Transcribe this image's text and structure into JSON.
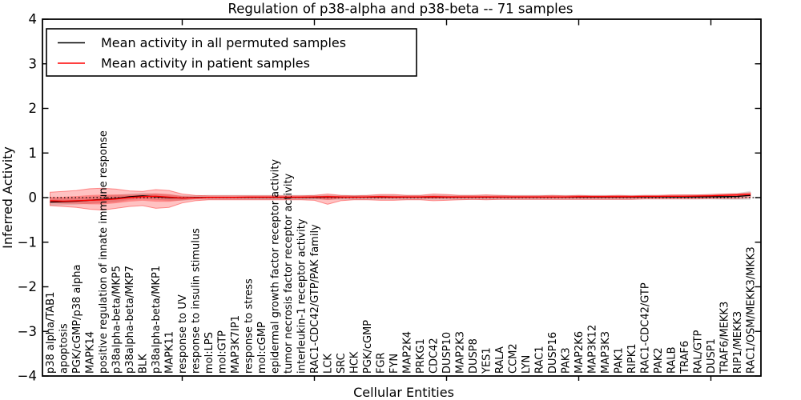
{
  "chart_data": {
    "type": "line",
    "title": "Regulation of p38-alpha and p38-beta -- 71 samples",
    "xlabel": "Cellular Entities",
    "ylabel": "Inferred Activity",
    "ylim": [
      -4,
      4
    ],
    "yticks": [
      -4,
      -3,
      -2,
      -1,
      0,
      1,
      2,
      3,
      4
    ],
    "x_major_tick_indices": [
      10,
      20,
      30,
      40,
      50
    ],
    "grid": false,
    "zero_line": {
      "y": 0,
      "style": "dotted",
      "color": "#000000"
    },
    "legend": {
      "position": "upper left",
      "items": [
        {
          "label": "Mean activity in all permuted samples",
          "color": "#000000"
        },
        {
          "label": "Mean activity in patient samples",
          "color": "#ff0000"
        }
      ]
    },
    "categories": [
      "p38 alpha/TAB1",
      "apoptosis",
      "PGK/cGMP/p38 alpha",
      "MAPK14",
      "positive regulation of innate immune response",
      "p38alpha-beta/MKP5",
      "p38alpha-beta/MKP7",
      "BLK",
      "p38alpha-beta/MKP1",
      "MAPK11",
      "response to UV",
      "response to insulin stimulus",
      "mol:LPS",
      "mol:GTP",
      "MAP3K7IP1",
      "response to stress",
      "mol:cGMP",
      "epidermal growth factor receptor activity",
      "tumor necrosis factor receptor activity",
      "interleukin-1 receptor activity",
      "RAC1-CDC42/GTP/PAK family",
      "LCK",
      "SRC",
      "HCK",
      "PGK/cGMP",
      "FGR",
      "FYN",
      "MAP2K4",
      "PRKG1",
      "CDC42",
      "DUSP10",
      "MAP2K3",
      "DUSP8",
      "YES1",
      "RALA",
      "CCM2",
      "LYN",
      "RAC1",
      "DUSP16",
      "PAK3",
      "MAP2K6",
      "MAP3K12",
      "MAP3K3",
      "PAK1",
      "RIPK1",
      "RAC1-CDC42/GTP",
      "PAK2",
      "RALB",
      "TRAF6",
      "RAL/GTP",
      "DUSP1",
      "TRAF6/MEKK3",
      "RIP1/MEKK3",
      "RAC1/OSM/MEKK3/MKK3"
    ],
    "series": [
      {
        "name": "Mean activity in all permuted samples",
        "color": "#000000",
        "values": [
          -0.1,
          -0.09,
          -0.08,
          -0.06,
          -0.04,
          -0.02,
          0.02,
          0.04,
          0.02,
          0.0,
          -0.01,
          0.0,
          0.005,
          0.005,
          0.005,
          0.005,
          0.005,
          0.005,
          0.005,
          0.005,
          0.005,
          0.01,
          0.01,
          0.01,
          0.01,
          0.01,
          0.01,
          0.01,
          0.01,
          0.01,
          0.01,
          0.01,
          0.01,
          0.01,
          0.01,
          0.01,
          0.01,
          0.01,
          0.01,
          0.01,
          0.01,
          0.01,
          0.01,
          0.01,
          0.01,
          0.015,
          0.015,
          0.015,
          0.015,
          0.015,
          0.02,
          0.02,
          0.025,
          0.05
        ],
        "band": {
          "color": "#808080",
          "opacity": 0.25,
          "upper": [
            -0.02,
            -0.01,
            0.0,
            0.02,
            0.04,
            0.06,
            0.09,
            0.11,
            0.09,
            0.07,
            0.05,
            0.05,
            0.06,
            0.06,
            0.06,
            0.06,
            0.06,
            0.06,
            0.06,
            0.06,
            0.06,
            0.06,
            0.06,
            0.06,
            0.06,
            0.06,
            0.06,
            0.06,
            0.06,
            0.06,
            0.06,
            0.06,
            0.06,
            0.06,
            0.06,
            0.06,
            0.06,
            0.06,
            0.06,
            0.06,
            0.06,
            0.06,
            0.06,
            0.06,
            0.06,
            0.06,
            0.06,
            0.06,
            0.07,
            0.07,
            0.08,
            0.09,
            0.1,
            0.15
          ],
          "lower": [
            -0.18,
            -0.17,
            -0.16,
            -0.14,
            -0.12,
            -0.1,
            -0.05,
            -0.03,
            -0.05,
            -0.07,
            -0.07,
            -0.05,
            -0.05,
            -0.05,
            -0.05,
            -0.05,
            -0.05,
            -0.05,
            -0.05,
            -0.05,
            -0.05,
            -0.05,
            -0.05,
            -0.05,
            -0.05,
            -0.05,
            -0.05,
            -0.05,
            -0.05,
            -0.05,
            -0.05,
            -0.05,
            -0.05,
            -0.05,
            -0.05,
            -0.05,
            -0.05,
            -0.05,
            -0.05,
            -0.05,
            -0.05,
            -0.05,
            -0.05,
            -0.05,
            -0.05,
            -0.04,
            -0.04,
            -0.04,
            -0.04,
            -0.04,
            -0.04,
            -0.05,
            -0.05,
            -0.05
          ]
        }
      },
      {
        "name": "Mean activity in patient samples",
        "color": "#ff0000",
        "values": [
          -0.07,
          -0.08,
          -0.07,
          -0.06,
          -0.05,
          -0.03,
          0.0,
          0.02,
          0.03,
          0.01,
          -0.01,
          -0.005,
          0.005,
          0.005,
          0.005,
          0.01,
          0.01,
          0.01,
          0.01,
          0.01,
          0.015,
          0.02,
          0.015,
          0.01,
          0.015,
          0.02,
          0.015,
          0.015,
          0.015,
          0.02,
          0.015,
          0.015,
          0.015,
          0.015,
          0.015,
          0.015,
          0.015,
          0.015,
          0.015,
          0.015,
          0.02,
          0.02,
          0.02,
          0.02,
          0.02,
          0.025,
          0.025,
          0.03,
          0.03,
          0.035,
          0.04,
          0.05,
          0.06,
          0.07
        ],
        "band": {
          "color": "#ff0000",
          "opacity": 0.24,
          "inner_scale": 0.45,
          "upper": [
            0.12,
            0.14,
            0.16,
            0.2,
            0.21,
            0.19,
            0.15,
            0.14,
            0.18,
            0.16,
            0.08,
            0.05,
            0.04,
            0.04,
            0.04,
            0.04,
            0.04,
            0.04,
            0.04,
            0.04,
            0.05,
            0.08,
            0.05,
            0.04,
            0.05,
            0.07,
            0.07,
            0.05,
            0.05,
            0.08,
            0.07,
            0.05,
            0.05,
            0.06,
            0.05,
            0.04,
            0.04,
            0.04,
            0.05,
            0.04,
            0.05,
            0.04,
            0.04,
            0.05,
            0.04,
            0.05,
            0.05,
            0.06,
            0.06,
            0.06,
            0.07,
            0.08,
            0.09,
            0.11
          ],
          "lower": [
            -0.18,
            -0.2,
            -0.22,
            -0.26,
            -0.28,
            -0.24,
            -0.2,
            -0.18,
            -0.24,
            -0.22,
            -0.12,
            -0.07,
            -0.05,
            -0.05,
            -0.05,
            -0.05,
            -0.05,
            -0.05,
            -0.05,
            -0.05,
            -0.06,
            -0.15,
            -0.07,
            -0.05,
            -0.05,
            -0.06,
            -0.06,
            -0.05,
            -0.05,
            -0.07,
            -0.06,
            -0.05,
            -0.04,
            -0.05,
            -0.04,
            -0.04,
            -0.04,
            -0.04,
            -0.04,
            -0.04,
            -0.04,
            -0.04,
            -0.04,
            -0.04,
            -0.04,
            -0.03,
            -0.03,
            -0.03,
            -0.03,
            -0.03,
            -0.02,
            -0.02,
            -0.02,
            0.0
          ]
        }
      }
    ]
  }
}
